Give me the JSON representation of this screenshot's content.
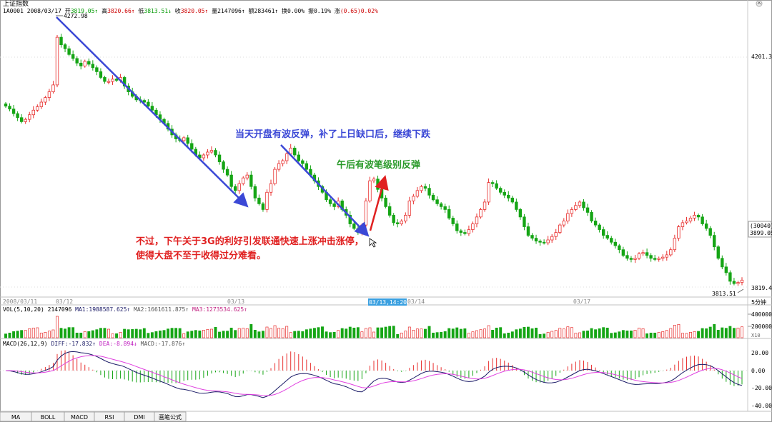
{
  "header": {
    "title": "上证指数",
    "code": "1A0001",
    "date": "2008/03/17",
    "stats": [
      {
        "label": "开",
        "value": "3819.05",
        "arrow": "↑",
        "color": "#009900"
      },
      {
        "label": "高",
        "value": "3820.66",
        "arrow": "↑",
        "color": "#cc0000"
      },
      {
        "label": "低",
        "value": "3813.51",
        "arrow": "↓",
        "color": "#009900"
      },
      {
        "label": "收",
        "value": "3820.05",
        "arrow": "↑",
        "color": "#cc0000"
      },
      {
        "label": "量",
        "value": "2147096",
        "arrow": "↑",
        "color": "#000000"
      },
      {
        "label": "额",
        "value": "283461",
        "arrow": "↑",
        "color": "#000000"
      },
      {
        "label": "换",
        "value": "0.00%",
        "arrow": "",
        "color": "#000000"
      },
      {
        "label": "振",
        "value": "0.19%",
        "arrow": "",
        "color": "#000000"
      },
      {
        "label": "涨",
        "value": "(0.65)0.02%",
        "arrow": "",
        "color": "#cc0000"
      }
    ]
  },
  "main_chart": {
    "price_axis": [
      "4201.3"
    ],
    "high_label": "4272.98",
    "low_label": "3813.51",
    "current_box": [
      "(30040)",
      "3899.05"
    ],
    "bottom_right_value": "3819.4",
    "date_labels": [
      "2008/03/11",
      "03/12",
      "03/13",
      "03/14",
      "03/17"
    ],
    "cursor_time": "03/13,14:20",
    "period_label": "5分钟",
    "annotations": {
      "blue": "当天开盘有波反弹，补了上日缺口后，继续下跌",
      "green": "午后有波笔级别反弹",
      "red_line1": "不过，下午关于3G的利好引发联通快速上涨冲击涨停，",
      "red_line2": "使得大盘不至于收得过分难看。"
    }
  },
  "volume": {
    "title": "VOL(5,10,20)",
    "value": "2147096",
    "ma1": "MA1:1988587.625",
    "ma2": "MA2:1661611.875",
    "ma3": "MA3:1273534.625",
    "axis_labels": [
      "400000",
      "200000"
    ],
    "unit": "X10"
  },
  "macd": {
    "title": "MACD(26,12,9)",
    "diff": "DIFF:-17.832",
    "dea": "DEA:-8.894",
    "macd": "MACD:-17.876",
    "axis_labels": [
      "20.00",
      "0.00",
      "-20.00",
      "-40.00"
    ]
  },
  "bottom_tabs": [
    "MA",
    "BOLL",
    "MACD",
    "RSI",
    "DMI",
    "画笔公式"
  ],
  "colors": {
    "up": "#e8302f",
    "down": "#15a515",
    "blue_arrow": "#3b48d6",
    "red_arrow": "#e02020",
    "diff": "#1a1a66",
    "dea": "#e040e0"
  },
  "chart_data": {
    "type": "candlestick",
    "title": "上证指数",
    "period": "5分钟",
    "x_ticks": [
      "2008/03/11",
      "03/12",
      "03/13",
      "03/14",
      "03/17"
    ],
    "ylim": [
      3813.51,
      4272.98
    ],
    "close_series": [
      4125,
      4120,
      4112,
      4105,
      4098,
      4102,
      4110,
      4118,
      4124,
      4132,
      4140,
      4150,
      4162,
      4245,
      4232,
      4225,
      4215,
      4208,
      4200,
      4195,
      4203,
      4198,
      4192,
      4185,
      4175,
      4168,
      4168,
      4172,
      4170,
      4175,
      4160,
      4150,
      4142,
      4136,
      4135,
      4132,
      4125,
      4118,
      4110,
      4102,
      4095,
      4085,
      4075,
      4068,
      4065,
      4070,
      4060,
      4050,
      4040,
      4035,
      4040,
      4045,
      4048,
      4040,
      4028,
      4015,
      4005,
      3985,
      3978,
      3990,
      4000,
      4005,
      3985,
      3965,
      3955,
      3945,
      3975,
      3990,
      4015,
      4025,
      4030,
      4042,
      4052,
      4040,
      4030,
      4025,
      4015,
      4005,
      3995,
      3985,
      3975,
      3962,
      3955,
      3950,
      3960,
      3945,
      3935,
      3920,
      3912,
      3905,
      3918,
      3960,
      3995,
      3998,
      3980,
      3965,
      3950,
      3935,
      3922,
      3920,
      3925,
      3935,
      3960,
      3968,
      3978,
      3985,
      3982,
      3970,
      3962,
      3955,
      3950,
      3945,
      3930,
      3920,
      3908,
      3905,
      3903,
      3910,
      3920,
      3932,
      3945,
      3958,
      3992,
      3990,
      3982,
      3975,
      3970,
      3965,
      3958,
      3945,
      3932,
      3915,
      3900,
      3895,
      3890,
      3888,
      3887,
      3892,
      3898,
      3905,
      3918,
      3925,
      3938,
      3945,
      3952,
      3958,
      3948,
      3940,
      3925,
      3918,
      3910,
      3900,
      3895,
      3888,
      3882,
      3875,
      3865,
      3860,
      3858,
      3860,
      3868,
      3870,
      3865,
      3860,
      3858,
      3860,
      3862,
      3866,
      3875,
      3895,
      3915,
      3922,
      3925,
      3930,
      3935,
      3932,
      3920,
      3912,
      3900,
      3880,
      3860,
      3845,
      3835,
      3820,
      3816,
      3818,
      3822
    ]
  }
}
